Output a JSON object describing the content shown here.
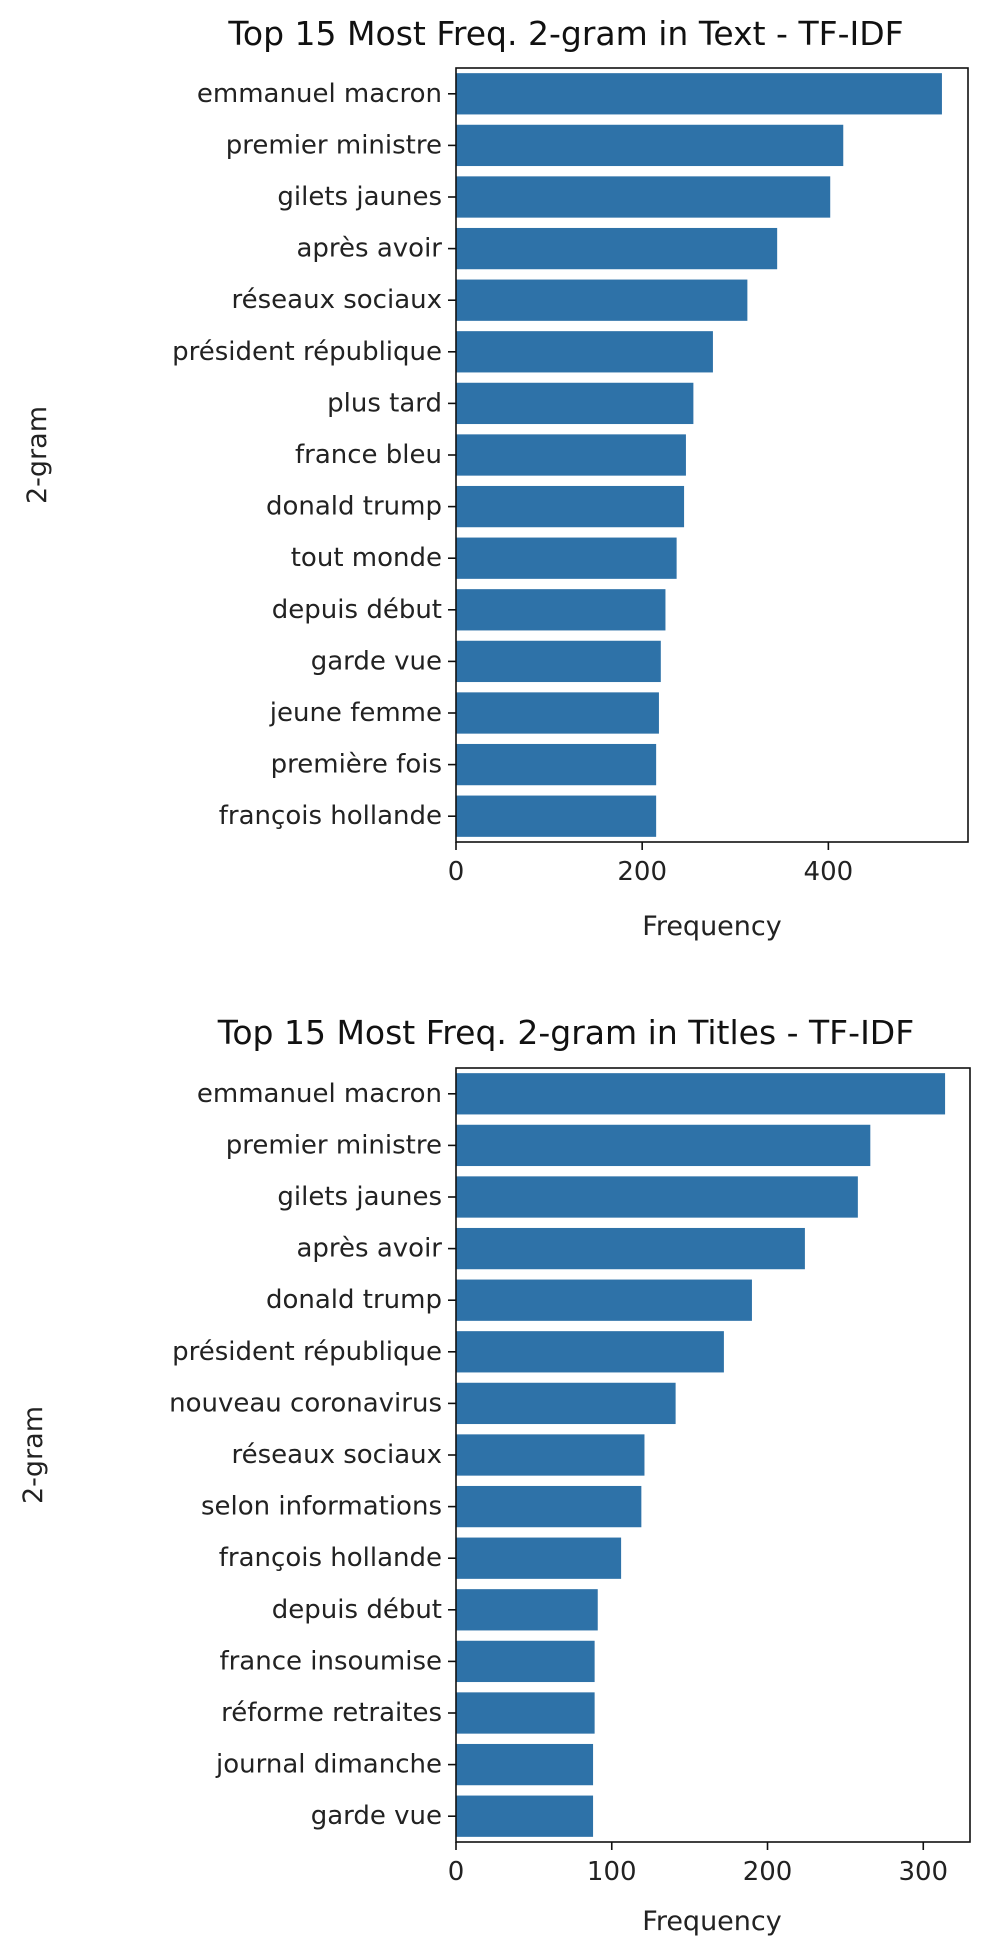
{
  "chart_data": [
    {
      "type": "bar",
      "orientation": "horizontal",
      "title": "Top 15 Most Freq. 2-gram in Text - TF-IDF",
      "xlabel": "Frequency",
      "ylabel": "2-gram",
      "xlim": [
        0,
        550
      ],
      "xticks": [
        0,
        200,
        400
      ],
      "categories": [
        "emmanuel macron",
        "premier ministre",
        "gilets jaunes",
        "après avoir",
        "réseaux sociaux",
        "président république",
        "plus tard",
        "france bleu",
        "donald trump",
        "tout monde",
        "depuis début",
        "garde vue",
        "jeune femme",
        "première fois",
        "françois hollande"
      ],
      "values": [
        522,
        416,
        402,
        345,
        313,
        276,
        255,
        247,
        245,
        237,
        225,
        220,
        218,
        215,
        215
      ],
      "color": "#2e72a8"
    },
    {
      "type": "bar",
      "orientation": "horizontal",
      "title": "Top 15 Most Freq. 2-gram in Titles - TF-IDF",
      "xlabel": "Frequency",
      "ylabel": "2-gram",
      "xlim": [
        0,
        330
      ],
      "xticks": [
        0,
        100,
        200,
        300
      ],
      "categories": [
        "emmanuel macron",
        "premier ministre",
        "gilets jaunes",
        "après avoir",
        "donald trump",
        "président république",
        "nouveau coronavirus",
        "réseaux sociaux",
        "selon informations",
        "françois hollande",
        "depuis début",
        "france insoumise",
        "réforme retraites",
        "journal dimanche",
        "garde vue"
      ],
      "values": [
        314,
        266,
        258,
        224,
        190,
        172,
        141,
        121,
        119,
        106,
        91,
        89,
        89,
        88,
        88
      ],
      "color": "#2e72a8"
    }
  ]
}
